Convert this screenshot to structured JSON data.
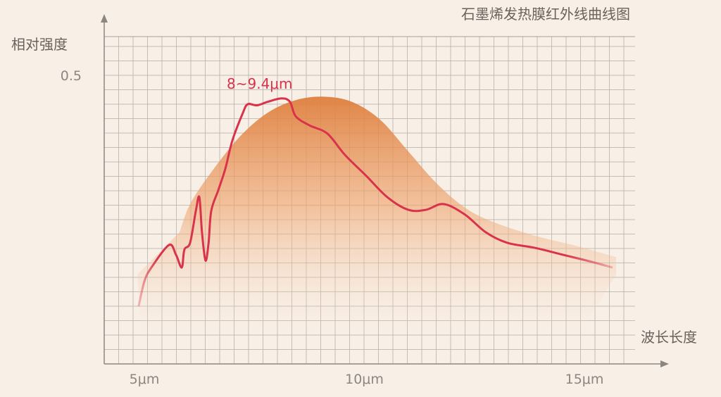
{
  "chart_data": {
    "type": "line",
    "title": "石墨烯发热膜红外线曲线图",
    "xlabel": "波长长度",
    "ylabel": "相对强度",
    "x_ticks": [
      {
        "value": 5,
        "label": "5μm"
      },
      {
        "value": 10,
        "label": "10μm"
      },
      {
        "value": 15,
        "label": "15μm"
      }
    ],
    "y_ticks": [
      {
        "value": 0.5,
        "label": "0.5"
      }
    ],
    "xlim": [
      4.1,
      16.1
    ],
    "ylim": [
      0,
      0.57
    ],
    "grid": true,
    "annotation": "8~9.4μm",
    "colors": {
      "measured": "#d8334a",
      "reference_area": "#e0874a",
      "background": "#f8efe6"
    },
    "series": [
      {
        "kind": "line",
        "x": [
          4.87,
          5.0,
          5.16,
          5.56,
          5.72,
          5.85,
          5.91,
          6.04,
          6.17,
          6.25,
          6.31,
          6.39,
          6.46,
          6.52,
          6.68,
          6.84,
          7.0,
          7.24,
          7.35,
          7.56,
          7.8,
          8.12,
          8.31,
          8.44,
          8.76,
          9.16,
          9.56,
          10.04,
          10.52,
          11.0,
          11.4,
          11.8,
          12.28,
          12.76,
          13.24,
          13.88,
          14.52,
          15.16,
          15.64
        ],
        "y": [
          0.1,
          0.143,
          0.167,
          0.206,
          0.189,
          0.167,
          0.198,
          0.21,
          0.265,
          0.289,
          0.228,
          0.179,
          0.21,
          0.265,
          0.301,
          0.338,
          0.387,
          0.435,
          0.45,
          0.448,
          0.454,
          0.46,
          0.454,
          0.429,
          0.413,
          0.399,
          0.362,
          0.326,
          0.289,
          0.267,
          0.267,
          0.277,
          0.259,
          0.228,
          0.21,
          0.201,
          0.189,
          0.177,
          0.167
        ]
      },
      {
        "kind": "area",
        "x": [
          5.8,
          6.04,
          6.52,
          7.16,
          7.8,
          8.44,
          9.08,
          9.72,
          10.36,
          11.0,
          11.64,
          12.28,
          12.92,
          13.88,
          14.84,
          15.72
        ],
        "y": [
          0.228,
          0.277,
          0.332,
          0.393,
          0.435,
          0.457,
          0.463,
          0.454,
          0.423,
          0.368,
          0.313,
          0.271,
          0.246,
          0.222,
          0.204,
          0.185
        ]
      }
    ]
  }
}
